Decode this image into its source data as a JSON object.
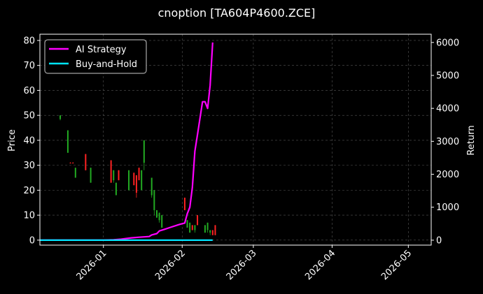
{
  "chart_data": {
    "type": "line",
    "title": "cnoption [TA604P4600.ZCE]",
    "ylabel_left": "Price",
    "ylabel_right": "Return",
    "legend": {
      "placement": "top-left",
      "entries": [
        {
          "name": "AI Strategy",
          "color": "#ff00ff"
        },
        {
          "name": "Buy-and-Hold",
          "color": "#00e5ff"
        }
      ]
    },
    "grid": true,
    "x_axis": {
      "type": "date",
      "range": [
        "2025-12-07",
        "2026-05-10"
      ],
      "ticks": [
        "2026-01-01",
        "2026-02-01",
        "2026-03-01",
        "2026-04-01",
        "2026-05-01"
      ],
      "tick_labels": [
        "2026-01",
        "2026-02",
        "2026-03",
        "2026-04",
        "2026-05"
      ]
    },
    "y_left": {
      "range": [
        -2,
        82.5
      ],
      "ticks": [
        0,
        10,
        20,
        30,
        40,
        50,
        60,
        70,
        80
      ]
    },
    "y_right": {
      "range": [
        -150,
        6250
      ],
      "ticks": [
        0,
        1000,
        2000,
        3000,
        4000,
        5000,
        6000
      ]
    },
    "candles": [
      {
        "date": "2025-12-15",
        "open": 50,
        "close": 48.5,
        "high": 50,
        "low": 48,
        "dir": "down"
      },
      {
        "date": "2025-12-18",
        "open": 44,
        "close": 35,
        "high": 44,
        "low": 35,
        "dir": "down"
      },
      {
        "date": "2025-12-19",
        "open": 31,
        "close": 31,
        "high": 31.2,
        "low": 30.8,
        "dir": "up"
      },
      {
        "date": "2025-12-20",
        "open": 31,
        "close": 31,
        "high": 31.2,
        "low": 30.8,
        "dir": "up"
      },
      {
        "date": "2025-12-21",
        "open": 29,
        "close": 25,
        "high": 29,
        "low": 25,
        "dir": "down"
      },
      {
        "date": "2025-12-25",
        "open": 28,
        "close": 34.5,
        "high": 34.5,
        "low": 28,
        "dir": "up"
      },
      {
        "date": "2025-12-27",
        "open": 29,
        "close": 23,
        "high": 29,
        "low": 23,
        "dir": "down"
      },
      {
        "date": "2026-01-04",
        "open": 23,
        "close": 32,
        "high": 32,
        "low": 23,
        "dir": "up"
      },
      {
        "date": "2026-01-05",
        "open": 28,
        "close": 24,
        "high": 28,
        "low": 23,
        "dir": "down"
      },
      {
        "date": "2026-01-06",
        "open": 23,
        "close": 18,
        "high": 23,
        "low": 18,
        "dir": "down"
      },
      {
        "date": "2026-01-07",
        "open": 24,
        "close": 28,
        "high": 28,
        "low": 24,
        "dir": "up"
      },
      {
        "date": "2026-01-11",
        "open": 28,
        "close": 20,
        "high": 28,
        "low": 20,
        "dir": "down"
      },
      {
        "date": "2026-01-13",
        "open": 22,
        "close": 27,
        "high": 27,
        "low": 22,
        "dir": "up"
      },
      {
        "date": "2026-01-14",
        "open": 19,
        "close": 26,
        "high": 26,
        "low": 17,
        "dir": "up"
      },
      {
        "date": "2026-01-15",
        "open": 24,
        "close": 29,
        "high": 29,
        "low": 24,
        "dir": "up"
      },
      {
        "date": "2026-01-16",
        "open": 28,
        "close": 20,
        "high": 28,
        "low": 20,
        "dir": "down"
      },
      {
        "date": "2026-01-17",
        "open": 40,
        "close": 31,
        "high": 40,
        "low": 28,
        "dir": "down"
      },
      {
        "date": "2026-01-20",
        "open": 25,
        "close": 18,
        "high": 25,
        "low": 17,
        "dir": "down"
      },
      {
        "date": "2026-01-21",
        "open": 20,
        "close": 12,
        "high": 20,
        "low": 10,
        "dir": "down"
      },
      {
        "date": "2026-01-22",
        "open": 12,
        "close": 9,
        "high": 12,
        "low": 9,
        "dir": "down"
      },
      {
        "date": "2026-01-23",
        "open": 11,
        "close": 8,
        "high": 11,
        "low": 7,
        "dir": "down"
      },
      {
        "date": "2026-01-24",
        "open": 10,
        "close": 5,
        "high": 10,
        "low": 5,
        "dir": "down"
      },
      {
        "date": "2026-02-02",
        "open": 12,
        "close": 17,
        "high": 17,
        "low": 12,
        "dir": "up"
      },
      {
        "date": "2026-02-03",
        "open": 8,
        "close": 5,
        "high": 8,
        "low": 5,
        "dir": "down"
      },
      {
        "date": "2026-02-04",
        "open": 7,
        "close": 3,
        "high": 7,
        "low": 3,
        "dir": "down"
      },
      {
        "date": "2026-02-05",
        "open": 4,
        "close": 6,
        "high": 6,
        "low": 4,
        "dir": "up"
      },
      {
        "date": "2026-02-06",
        "open": 6,
        "close": 4,
        "high": 6,
        "low": 3,
        "dir": "down"
      },
      {
        "date": "2026-02-07",
        "open": 6,
        "close": 10,
        "high": 10,
        "low": 6,
        "dir": "up"
      },
      {
        "date": "2026-02-10",
        "open": 6,
        "close": 3,
        "high": 6,
        "low": 3,
        "dir": "down"
      },
      {
        "date": "2026-02-11",
        "open": 7,
        "close": 4,
        "high": 7,
        "low": 3,
        "dir": "down"
      },
      {
        "date": "2026-02-12",
        "open": 4,
        "close": 3,
        "high": 4,
        "low": 2,
        "dir": "down"
      },
      {
        "date": "2026-02-13",
        "open": 2,
        "close": 4,
        "high": 4,
        "low": 2,
        "dir": "up"
      },
      {
        "date": "2026-02-14",
        "open": 2,
        "close": 6,
        "high": 6,
        "low": 2,
        "dir": "up"
      }
    ],
    "series": [
      {
        "name": "AI Strategy",
        "axis": "right",
        "color": "#ff00ff",
        "points": [
          [
            "2025-12-07",
            0
          ],
          [
            "2026-01-01",
            0
          ],
          [
            "2026-01-05",
            10
          ],
          [
            "2026-01-08",
            30
          ],
          [
            "2026-01-12",
            70
          ],
          [
            "2026-01-15",
            90
          ],
          [
            "2026-01-19",
            110
          ],
          [
            "2026-01-20",
            160
          ],
          [
            "2026-01-22",
            200
          ],
          [
            "2026-01-23",
            280
          ],
          [
            "2026-01-25",
            330
          ],
          [
            "2026-01-27",
            380
          ],
          [
            "2026-01-31",
            480
          ],
          [
            "2026-02-01",
            500
          ],
          [
            "2026-02-02",
            520
          ],
          [
            "2026-02-03",
            800
          ],
          [
            "2026-02-04",
            1000
          ],
          [
            "2026-02-05",
            1600
          ],
          [
            "2026-02-06",
            2700
          ],
          [
            "2026-02-07",
            3200
          ],
          [
            "2026-02-08",
            3700
          ],
          [
            "2026-02-09",
            4200
          ],
          [
            "2026-02-10",
            4200
          ],
          [
            "2026-02-11",
            4000
          ],
          [
            "2026-02-12",
            4700
          ],
          [
            "2026-02-13",
            6000
          ]
        ]
      },
      {
        "name": "Buy-and-Hold",
        "axis": "right",
        "color": "#00e5ff",
        "points": [
          [
            "2025-12-07",
            0
          ],
          [
            "2026-02-13",
            0
          ]
        ]
      }
    ]
  }
}
